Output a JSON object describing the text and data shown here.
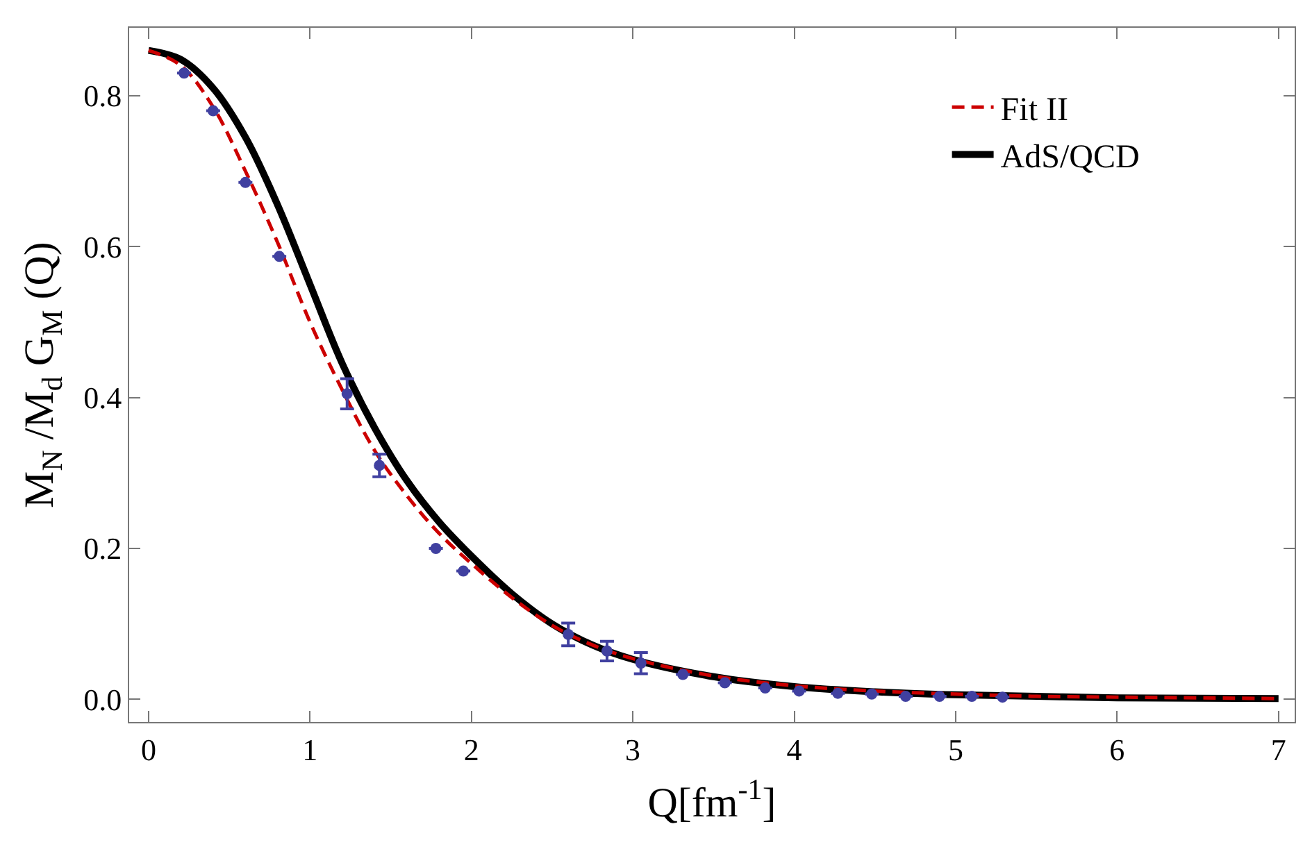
{
  "chart_data": {
    "type": "line",
    "xlabel": "Q[fm$^{-1}$]",
    "ylabel": "M$_{N}$ /M$_{d}$ G$_{M}$ (Q)",
    "xlim": [
      -0.12,
      7.1
    ],
    "ylim": [
      -0.03,
      0.89
    ],
    "xticks": [
      0,
      1,
      2,
      3,
      4,
      5,
      6,
      7
    ],
    "yticks": [
      {
        "value": 0,
        "label": "0.0"
      },
      {
        "value": 0.2,
        "label": "0.2"
      },
      {
        "value": 0.4,
        "label": "0.4"
      },
      {
        "value": 0.6,
        "label": "0.6"
      },
      {
        "value": 0.8,
        "label": "0.8"
      }
    ],
    "grid": false,
    "legend": "top right",
    "series": [
      {
        "type": "scatter",
        "color": "#4040a0",
        "marker": "circle",
        "x": [
          0.22,
          0.4,
          0.6,
          0.81,
          1.23,
          1.43,
          1.78,
          1.95,
          2.6,
          2.84,
          3.05,
          3.31,
          3.57,
          3.82,
          4.03,
          4.27,
          4.48,
          4.69,
          4.9,
          5.1,
          5.29
        ],
        "values": [
          0.83,
          0.78,
          0.685,
          0.587,
          0.405,
          0.31,
          0.2,
          0.17,
          0.086,
          0.064,
          0.048,
          0.033,
          0.022,
          0.015,
          0.011,
          0.008,
          0.007,
          0.004,
          0.004,
          0.004,
          0.003
        ],
        "errors": [
          null,
          null,
          null,
          null,
          0.02,
          0.015,
          null,
          null,
          0.015,
          0.013,
          0.014,
          null,
          null,
          null,
          null,
          null,
          null,
          null,
          null,
          null,
          null
        ]
      },
      {
        "name": "Fit II",
        "color": "#cc0000",
        "line_style": "dashed",
        "x": [
          0,
          0.2,
          0.4,
          0.6,
          0.8,
          1.0,
          1.2,
          1.4,
          1.6,
          1.8,
          2.0,
          2.25,
          2.5,
          2.75,
          3,
          3.5,
          4,
          4.5,
          5,
          5.5,
          6,
          7
        ],
        "values": [
          0.86,
          0.84,
          0.785,
          0.7,
          0.605,
          0.5,
          0.41,
          0.33,
          0.27,
          0.22,
          0.18,
          0.135,
          0.098,
          0.072,
          0.054,
          0.031,
          0.018,
          0.011,
          0.007,
          0.004,
          0.003,
          0.001
        ]
      },
      {
        "name": "AdS/QCD",
        "color": "#000000",
        "line_style": "solid",
        "x": [
          0,
          0.2,
          0.4,
          0.6,
          0.8,
          1.0,
          1.2,
          1.4,
          1.6,
          1.8,
          2.0,
          2.25,
          2.5,
          2.75,
          3,
          3.5,
          4,
          4.5,
          5,
          5.5,
          6,
          7
        ],
        "values": [
          0.86,
          0.848,
          0.81,
          0.745,
          0.655,
          0.55,
          0.445,
          0.36,
          0.29,
          0.235,
          0.19,
          0.14,
          0.1,
          0.072,
          0.053,
          0.03,
          0.017,
          0.01,
          0.006,
          0.004,
          0.002,
          0.001
        ]
      }
    ]
  }
}
